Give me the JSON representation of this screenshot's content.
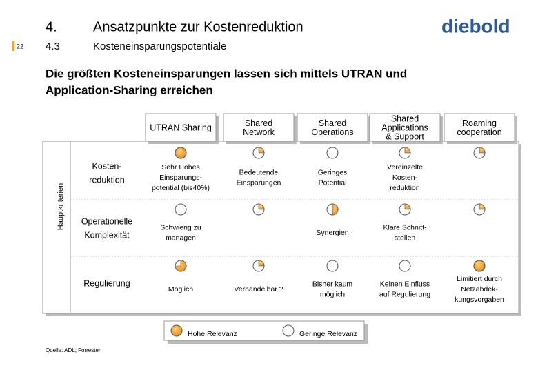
{
  "header": {
    "number": "4.",
    "title": "Ansatzpunkte zur Kostenreduktion",
    "sub_number": "4.3",
    "subtitle": "Kosteneinsparungspotentiale",
    "page": "22",
    "logo": "diebold"
  },
  "headline": [
    "Die größten Kosteneinsparungen lassen sich mittels UTRAN und",
    "Application-Sharing erreichen"
  ],
  "table": {
    "axis_label": "Hauptkriterien",
    "columns": [
      [
        "UTRAN Sharing"
      ],
      [
        "Shared",
        "Network"
      ],
      [
        "Shared",
        "Operations"
      ],
      [
        "Shared",
        "Applications",
        "& Support"
      ],
      [
        "Roaming",
        "cooperation"
      ]
    ],
    "rows": [
      {
        "label": [
          "Kosten-",
          "reduktion"
        ],
        "cells": [
          {
            "text": [
              "Sehr Hohes",
              "Einsparungs-",
              "potential (bis40%)"
            ],
            "relevance": 4
          },
          {
            "text": [
              "Bedeutende",
              "Einsparungen"
            ],
            "relevance": 1
          },
          {
            "text": [
              "Geringes",
              "Potential"
            ],
            "relevance": 0
          },
          {
            "text": [
              "Vereinzelte",
              "Kosten-",
              "reduktion"
            ],
            "relevance": 1
          },
          {
            "text": [],
            "relevance": 1
          }
        ]
      },
      {
        "label": [
          "Operationelle",
          "Komplexität"
        ],
        "cells": [
          {
            "text": [
              "Schwierig zu",
              "managen"
            ],
            "relevance": 0
          },
          {
            "text": [],
            "relevance": 1
          },
          {
            "text": [
              "Synergien"
            ],
            "relevance": 2
          },
          {
            "text": [
              "Klare Schnitt-",
              "stellen"
            ],
            "relevance": 1
          },
          {
            "text": [],
            "relevance": 1
          }
        ]
      },
      {
        "label": [
          "Regulierung"
        ],
        "cells": [
          {
            "text": [
              "Möglich"
            ],
            "relevance": 3
          },
          {
            "text": [
              "Verhandelbar ?"
            ],
            "relevance": 1
          },
          {
            "text": [
              "Bisher kaum",
              "möglich"
            ],
            "relevance": 0
          },
          {
            "text": [
              "Keinen Einfluss",
              "auf Regulierung"
            ],
            "relevance": 0
          },
          {
            "text": [
              "Limitiert durch",
              "Netzabdek-",
              "kungsvorgaben"
            ],
            "relevance": 4
          }
        ]
      }
    ]
  },
  "legend": {
    "high": "Hohe Relevanz",
    "low": "Geringe Relevanz"
  },
  "source": "Quelle: ADL; Forrester"
}
